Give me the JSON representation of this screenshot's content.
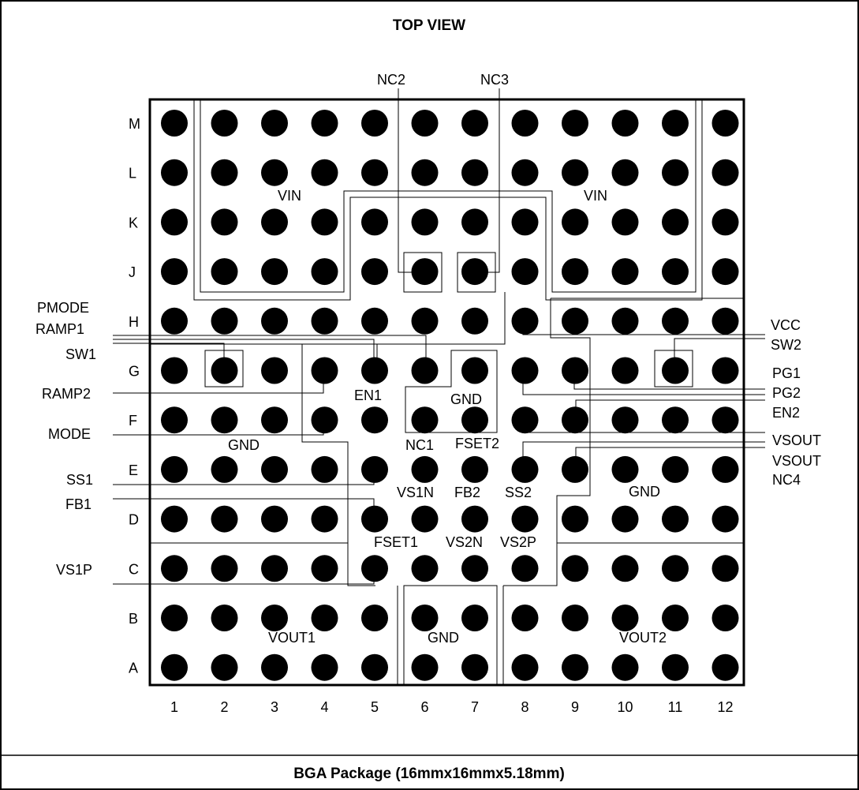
{
  "title": "TOP VIEW",
  "footer": "BGA Package (16mmx16mmx5.18mm)",
  "rows": [
    "M",
    "L",
    "K",
    "J",
    "H",
    "G",
    "F",
    "E",
    "D",
    "C",
    "B",
    "A"
  ],
  "cols": [
    "1",
    "2",
    "3",
    "4",
    "5",
    "6",
    "7",
    "8",
    "9",
    "10",
    "11",
    "12"
  ],
  "region_labels": {
    "vin_left": "VIN",
    "vin_right": "VIN",
    "gnd_left": "GND",
    "gnd_right": "GND",
    "gnd_center": "GND",
    "gnd_bottom": "GND",
    "vout1": "VOUT1",
    "vout2": "VOUT2"
  },
  "inner_labels": {
    "en1": "EN1",
    "nc1": "NC1",
    "fset2": "FSET2",
    "vs1n": "VS1N",
    "fb2": "FB2",
    "ss2": "SS2",
    "fset1": "FSET1",
    "vs2n": "VS2N",
    "vs2p": "VS2P"
  },
  "top_labels": {
    "nc2": "NC2",
    "nc3": "NC3"
  },
  "left_labels": {
    "pmode": "PMODE",
    "ramp1": "RAMP1",
    "sw1": "SW1",
    "ramp2": "RAMP2",
    "mode": "MODE",
    "ss1": "SS1",
    "fb1": "FB1",
    "vs1p": "VS1P"
  },
  "right_labels": {
    "vcc": "VCC",
    "sw2": "SW2",
    "pg1": "PG1",
    "pg2": "PG2",
    "en2": "EN2",
    "vsout1": "VSOUT",
    "vsout2": "VSOUT",
    "nc4": "NC4"
  }
}
